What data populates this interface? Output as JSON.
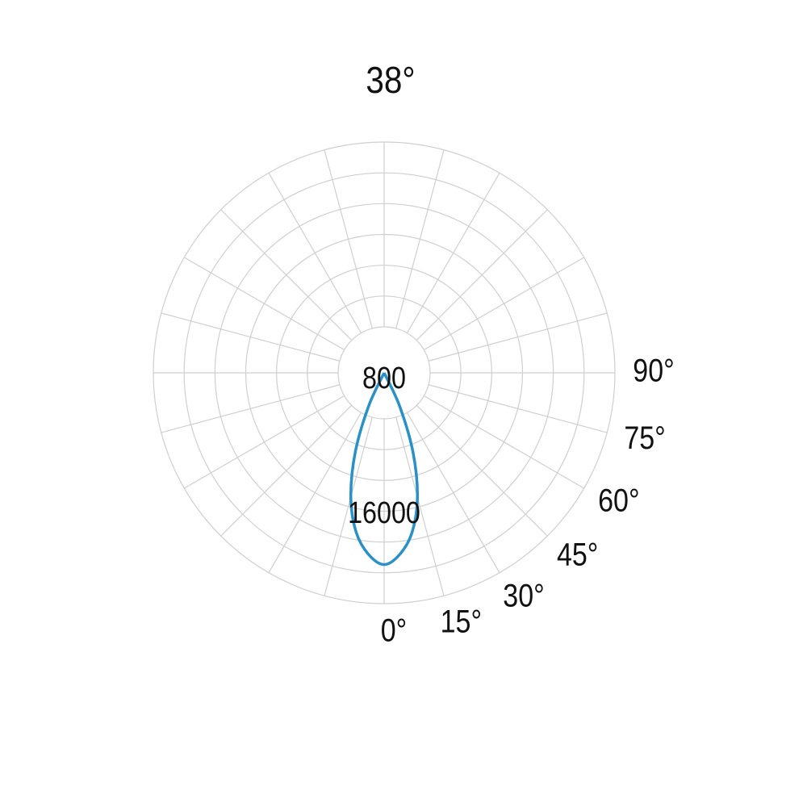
{
  "chart_data": {
    "type": "polar",
    "title": "38°",
    "theta": [
      -30,
      -25,
      -20,
      -15,
      -10,
      -5,
      0,
      5,
      10,
      15,
      20,
      25,
      30
    ],
    "series": [
      {
        "color": "#2a90c8",
        "values": [
          0,
          4100,
          9500,
          14500,
          18200,
          20500,
          21600,
          20500,
          18200,
          14500,
          9500,
          4100,
          0
        ]
      }
    ],
    "rlim": [
      0,
      26000
    ],
    "rticks": [
      800,
      16000
    ],
    "thetaticks": [
      {
        "value": 0,
        "label": "0°"
      },
      {
        "value": 15,
        "label": "15°"
      },
      {
        "value": 30,
        "label": "30°"
      },
      {
        "value": 45,
        "label": "45°"
      },
      {
        "value": 60,
        "label": "60°"
      },
      {
        "value": 75,
        "label": "75°"
      },
      {
        "value": 90,
        "label": "90°"
      }
    ],
    "grid": true
  }
}
